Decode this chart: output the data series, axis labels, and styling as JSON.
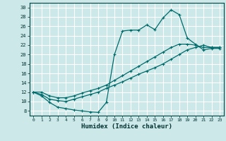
{
  "xlabel": "Humidex (Indice chaleur)",
  "bg_color": "#cce8e8",
  "grid_color": "#ffffff",
  "line_color": "#006b6b",
  "xlim": [
    -0.5,
    23.5
  ],
  "ylim": [
    7,
    31
  ],
  "xticks": [
    0,
    1,
    2,
    3,
    4,
    5,
    6,
    7,
    8,
    9,
    10,
    11,
    12,
    13,
    14,
    15,
    16,
    17,
    18,
    19,
    20,
    21,
    22,
    23
  ],
  "yticks": [
    8,
    10,
    12,
    14,
    16,
    18,
    20,
    22,
    24,
    26,
    28,
    30
  ],
  "line1_x": [
    0,
    1,
    2,
    3,
    4,
    5,
    6,
    7,
    8,
    9,
    10,
    11,
    12,
    13,
    14,
    15,
    16,
    17,
    18,
    19,
    20,
    21,
    22,
    23
  ],
  "line1_y": [
    12,
    11.2,
    9.8,
    8.8,
    8.5,
    8.2,
    8.0,
    7.8,
    7.7,
    9.8,
    20.0,
    25.0,
    25.2,
    25.2,
    26.3,
    25.3,
    27.8,
    29.5,
    28.5,
    23.5,
    22.2,
    21.0,
    21.3,
    21.3
  ],
  "line2_x": [
    0,
    1,
    2,
    3,
    4,
    5,
    6,
    7,
    8,
    9,
    10,
    11,
    12,
    13,
    14,
    15,
    16,
    17,
    18,
    19,
    20,
    21,
    22,
    23
  ],
  "line2_y": [
    12,
    11.5,
    10.5,
    10.2,
    10.0,
    10.5,
    11.0,
    11.5,
    12.0,
    12.8,
    13.5,
    14.2,
    15.0,
    15.8,
    16.5,
    17.2,
    18.0,
    19.0,
    20.0,
    21.0,
    21.5,
    22.0,
    21.5,
    21.5
  ],
  "line3_x": [
    0,
    1,
    2,
    3,
    4,
    5,
    6,
    7,
    8,
    9,
    10,
    11,
    12,
    13,
    14,
    15,
    16,
    17,
    18,
    19,
    20,
    21,
    22,
    23
  ],
  "line3_y": [
    12,
    12.0,
    11.2,
    10.8,
    10.8,
    11.2,
    11.8,
    12.3,
    12.8,
    13.5,
    14.5,
    15.5,
    16.5,
    17.5,
    18.5,
    19.5,
    20.5,
    21.5,
    22.2,
    22.2,
    22.0,
    21.5,
    21.5,
    21.5
  ]
}
